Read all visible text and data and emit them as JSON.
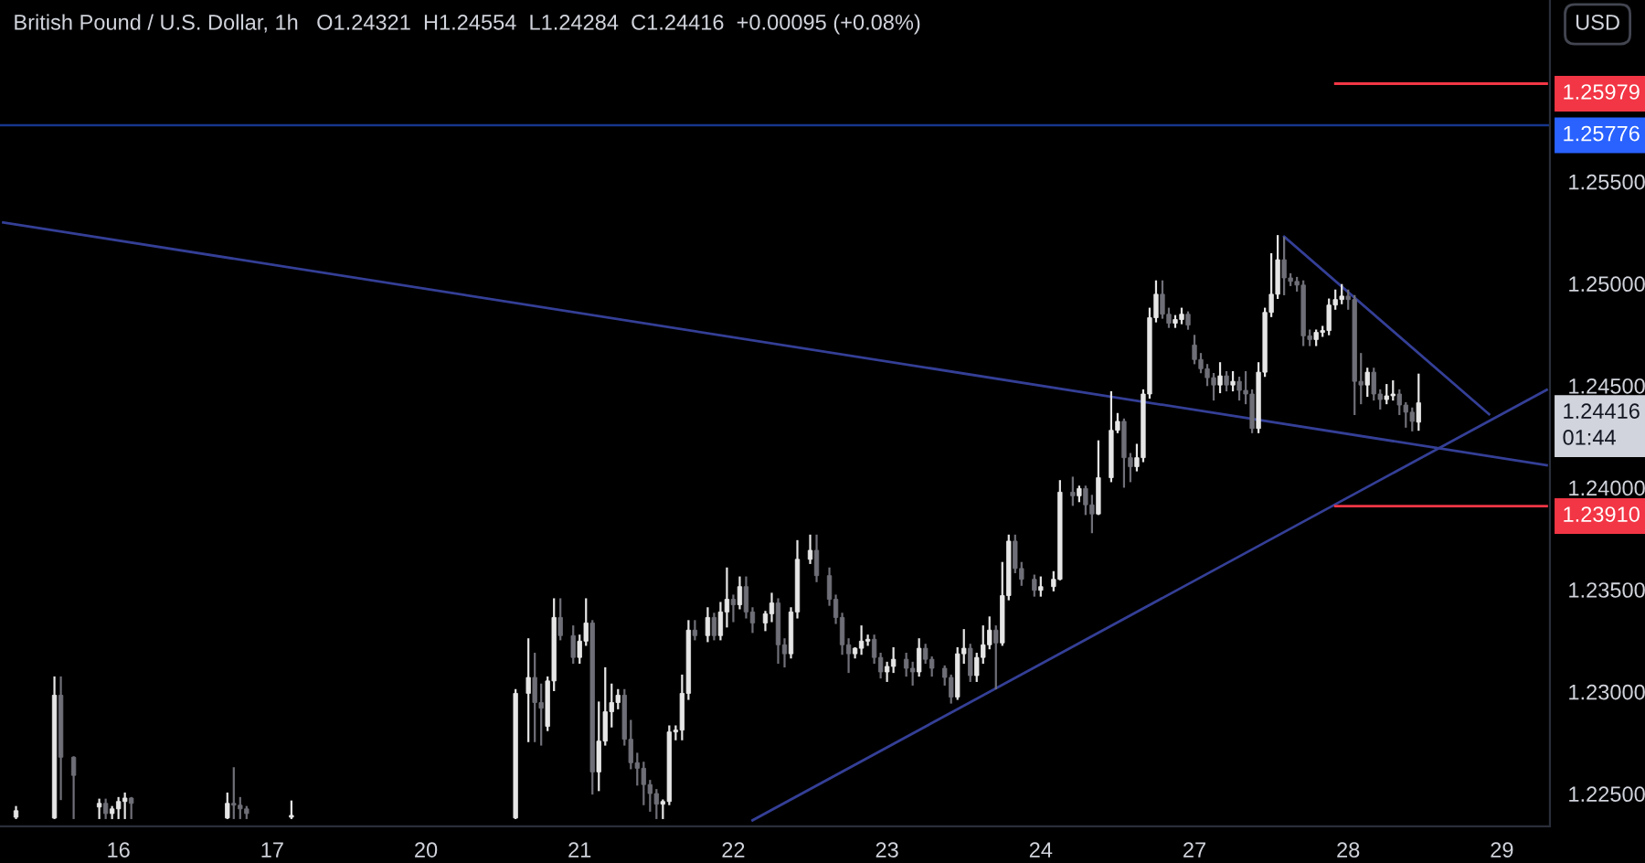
{
  "chart_data": {
    "type": "candlestick",
    "title": "British Pound / U.S. Dollar, 1h",
    "subtitle": "O1.24321  H1.24554  L1.24284  C1.24416  +0.00095 (+0.08%)",
    "categories": [
      null,
      null,
      null,
      null,
      null,
      null,
      null,
      null,
      null,
      null,
      null,
      null,
      null,
      null,
      null,
      null,
      null,
      null,
      "16",
      null,
      null,
      null,
      null,
      null,
      null,
      null,
      null,
      null,
      null,
      null,
      null,
      null,
      null,
      null,
      null,
      null,
      null,
      null,
      null,
      null,
      null,
      null,
      "17",
      null,
      null,
      null,
      null,
      null,
      null,
      null,
      null,
      null,
      null,
      null,
      null,
      null,
      null,
      null,
      null,
      null,
      null,
      null,
      null,
      null,
      null,
      null,
      "20",
      null,
      null,
      null,
      null,
      null,
      null,
      null,
      null,
      null,
      null,
      null,
      null,
      null,
      null,
      null,
      null,
      null,
      null,
      null,
      null,
      null,
      null,
      null,
      "21",
      null,
      null,
      null,
      null,
      null,
      null,
      null,
      null,
      null,
      null,
      null,
      null,
      null,
      null,
      null,
      null,
      null,
      null,
      null,
      null,
      null,
      null,
      null,
      "22",
      null,
      null,
      null,
      null,
      null,
      null,
      null,
      null,
      null,
      null,
      null,
      null,
      null,
      null,
      null,
      null,
      null,
      null,
      null,
      null,
      null,
      null,
      null,
      "23",
      null,
      null,
      null,
      null,
      null,
      null,
      null,
      null,
      null,
      null,
      null,
      null,
      null,
      null,
      null,
      null,
      null,
      null,
      null,
      null,
      null,
      null,
      null,
      "24",
      null,
      null,
      null,
      null,
      null,
      null,
      null,
      null,
      null,
      null,
      null,
      null,
      null,
      null,
      null,
      null,
      null,
      null,
      null,
      null,
      null,
      null,
      null,
      "27",
      null,
      null,
      null,
      null,
      null,
      null,
      null,
      null,
      null,
      null,
      null,
      null,
      null,
      null,
      null,
      null,
      null,
      null,
      null,
      null,
      null,
      null,
      null,
      "28",
      null,
      null,
      null,
      null,
      null,
      null,
      null,
      null,
      null,
      null,
      null,
      null,
      null,
      null,
      null,
      null,
      null,
      null,
      null,
      null,
      null,
      null,
      null,
      "29",
      null,
      null,
      null,
      null,
      null,
      null,
      null
    ],
    "ohlc": [
      null,
      null,
      [
        1.22385,
        1.22435,
        1.22381,
        1.22417
      ],
      null,
      null,
      null,
      null,
      null,
      [
        1.22381,
        1.2307,
        1.22381,
        1.22983
      ],
      [
        1.22983,
        1.2307,
        1.22474,
        1.22679
      ],
      null,
      [
        1.22679,
        1.22679,
        1.22381,
        1.2259
      ],
      null,
      null,
      null,
      [
        1.22435,
        1.22471,
        1.22381,
        1.22453
      ],
      [
        1.22453,
        1.22471,
        1.22381,
        1.22403
      ],
      [
        1.22403,
        1.22435,
        1.22381,
        1.22426
      ],
      [
        1.22426,
        1.22479,
        1.22381,
        1.22462
      ],
      [
        1.22462,
        1.22501,
        1.22381,
        1.22479
      ],
      [
        1.22479,
        1.22479,
        1.22381,
        1.22453
      ],
      null,
      null,
      null,
      null,
      null,
      null,
      null,
      null,
      null,
      null,
      null,
      null,
      null,
      null,
      [
        1.22381,
        1.22501,
        1.22381,
        1.22453
      ],
      [
        1.22453,
        1.22625,
        1.22381,
        1.22444
      ],
      [
        1.22444,
        1.22479,
        1.22381,
        1.22426
      ],
      [
        1.22426,
        1.22435,
        1.22381,
        1.22403
      ],
      null,
      null,
      null,
      null,
      null,
      null,
      [
        1.22385,
        1.22462,
        1.22381,
        1.22394
      ],
      null,
      null,
      null,
      null,
      null,
      null,
      null,
      null,
      null,
      null,
      null,
      null,
      null,
      null,
      null,
      null,
      null,
      null,
      null,
      null,
      null,
      null,
      null,
      null,
      null,
      null,
      null,
      null,
      null,
      null,
      null,
      null,
      null,
      null,
      [
        1.22381,
        1.23008,
        1.22381,
        1.22992
      ],
      null,
      [
        1.22992,
        1.23257,
        1.22758,
        1.2307
      ],
      [
        1.2307,
        1.23186,
        1.22758,
        1.22947
      ],
      [
        1.22947,
        1.23035,
        1.22741,
        1.22919
      ],
      [
        1.2283,
        1.2307,
        1.22812,
        1.23053
      ],
      [
        1.23053,
        1.23453,
        1.23008,
        1.23364
      ],
      [
        1.23364,
        1.23453,
        1.23257,
        1.23275
      ],
      null,
      [
        1.23275,
        1.2332,
        1.23142,
        1.23168
      ],
      [
        1.23168,
        1.23275,
        1.23142,
        1.23248
      ],
      [
        1.23248,
        1.23453,
        1.2323,
        1.23337
      ],
      [
        1.23337,
        1.23346,
        1.22501,
        1.22607
      ],
      [
        1.22607,
        1.22947,
        1.22518,
        1.22758
      ],
      [
        1.22758,
        1.23115,
        1.22741,
        1.22902
      ],
      [
        1.22902,
        1.23035,
        1.2283,
        1.22947
      ],
      [
        1.22947,
        1.23008,
        1.22919,
        1.22983
      ],
      [
        1.22983,
        1.23008,
        1.22741,
        1.22767
      ],
      [
        1.22767,
        1.22857,
        1.22625,
        1.22652
      ],
      [
        1.22652,
        1.22696,
        1.22545,
        1.22625
      ],
      [
        1.22625,
        1.22652,
        1.22449,
        1.22545
      ],
      [
        1.22545,
        1.22563,
        1.22417,
        1.22501
      ],
      [
        1.22501,
        1.22518,
        1.22381,
        1.22449
      ],
      [
        1.22449,
        1.22467,
        1.22381,
        1.22462
      ],
      [
        1.22462,
        1.2283,
        1.22449,
        1.22803
      ],
      [
        1.22803,
        1.2283,
        1.22767,
        1.22812
      ],
      [
        1.22812,
        1.23079,
        1.22767,
        1.22992
      ],
      [
        1.22992,
        1.23346,
        1.22965,
        1.23302
      ],
      [
        1.23302,
        1.23346,
        1.23257,
        1.23275
      ],
      null,
      [
        1.23275,
        1.23409,
        1.23248,
        1.23364
      ],
      [
        1.23364,
        1.23382,
        1.23257,
        1.23275
      ],
      [
        1.23275,
        1.23435,
        1.23257,
        1.23391
      ],
      [
        1.23391,
        1.23604,
        1.2332,
        1.23453
      ],
      [
        1.23453,
        1.23471,
        1.23346,
        1.23426
      ],
      [
        1.23426,
        1.2356,
        1.23409,
        1.23515
      ],
      [
        1.23515,
        1.2356,
        1.23364,
        1.23391
      ],
      [
        1.23391,
        1.23409,
        1.23293,
        1.23337
      ],
      null,
      [
        1.23337,
        1.23391,
        1.23302,
        1.23382
      ],
      [
        1.23382,
        1.2348,
        1.23346,
        1.23435
      ],
      [
        1.23435,
        1.23453,
        1.23142,
        1.2323
      ],
      [
        1.2323,
        1.23257,
        1.23124,
        1.23186
      ],
      [
        1.23186,
        1.23409,
        1.23168,
        1.23391
      ],
      [
        1.23391,
        1.23738,
        1.23364,
        1.23649
      ],
      null,
      [
        1.23649,
        1.23765,
        1.23631,
        1.23693
      ],
      [
        1.23693,
        1.23765,
        1.23542,
        1.23569
      ],
      null,
      [
        1.23569,
        1.23604,
        1.23426,
        1.23453
      ],
      [
        1.23453,
        1.23471,
        1.23337,
        1.23364
      ],
      [
        1.23364,
        1.23382,
        1.23186,
        1.2323
      ],
      [
        1.2323,
        1.23257,
        1.23097,
        1.23186
      ],
      [
        1.23186,
        1.23213,
        1.23168,
        1.23213
      ],
      [
        1.23213,
        1.2332,
        1.23186,
        1.23248
      ],
      [
        1.23248,
        1.23275,
        1.2323,
        1.23257
      ],
      [
        1.23257,
        1.23275,
        1.23142,
        1.23168
      ],
      [
        1.23168,
        1.23186,
        1.2307,
        1.23097
      ],
      [
        1.23097,
        1.23142,
        1.23053,
        1.23124
      ],
      [
        1.23124,
        1.23213,
        1.23097,
        1.23159
      ],
      null,
      [
        1.23159,
        1.23186,
        1.23079,
        1.23115
      ],
      [
        1.23115,
        1.23142,
        1.23035,
        1.23097
      ],
      [
        1.23097,
        1.23257,
        1.23079,
        1.23213
      ],
      [
        1.23213,
        1.2323,
        1.23142,
        1.23159
      ],
      [
        1.23159,
        1.23168,
        1.23079,
        1.23115
      ],
      null,
      [
        1.23115,
        1.23124,
        1.23035,
        1.2307
      ],
      [
        1.2307,
        1.23079,
        1.22947,
        1.22974
      ],
      [
        1.22974,
        1.23213,
        1.22965,
        1.23186
      ],
      [
        1.23186,
        1.23302,
        1.23142,
        1.23213
      ],
      [
        1.23213,
        1.2323,
        1.23053,
        1.23079
      ],
      [
        1.23079,
        1.23186,
        1.23053,
        1.23168
      ],
      [
        1.23168,
        1.2332,
        1.23142,
        1.2323
      ],
      [
        1.2323,
        1.23364,
        1.23213,
        1.23302
      ],
      [
        1.23302,
        1.2332,
        1.23017,
        1.23239
      ],
      [
        1.23239,
        1.23631,
        1.2323,
        1.23471
      ],
      [
        1.23471,
        1.23765,
        1.23453,
        1.23738
      ],
      [
        1.23738,
        1.23765,
        1.23586,
        1.23604
      ],
      [
        1.23604,
        1.23631,
        1.23524,
        1.23551
      ],
      null,
      [
        1.23551,
        1.23569,
        1.23471,
        1.23497
      ],
      [
        1.23497,
        1.2356,
        1.23471,
        1.23515
      ],
      null,
      [
        1.23515,
        1.23586,
        1.23497,
        1.23551
      ],
      [
        1.23551,
        1.24032,
        1.23551,
        1.23978
      ],
      null,
      [
        1.23978,
        1.24049,
        1.23916,
        1.2396
      ],
      [
        1.2396,
        1.24005,
        1.23934,
        1.23996
      ],
      [
        1.23996,
        1.24005,
        1.23871,
        1.23916
      ],
      [
        1.23916,
        1.2396,
        1.23782,
        1.23871
      ],
      [
        1.23871,
        1.24227,
        1.23871,
        1.24049
      ],
      null,
      [
        1.24049,
        1.24468,
        1.24032,
        1.24281
      ],
      [
        1.24281,
        1.24361,
        1.24272,
        1.24325
      ],
      [
        1.24325,
        1.24334,
        1.24005,
        1.24147
      ],
      [
        1.24147,
        1.24165,
        1.24032,
        1.24103
      ],
      [
        1.24103,
        1.2421,
        1.24085,
        1.24147
      ],
      [
        1.24147,
        1.24477,
        1.2413,
        1.24459
      ],
      [
        1.24459,
        1.24877,
        1.24441,
        1.24833
      ],
      [
        1.24833,
        1.25011,
        1.24815,
        1.24948
      ],
      [
        1.24948,
        1.25011,
        1.24833,
        1.2485
      ],
      [
        1.2485,
        1.24877,
        1.24788,
        1.24806
      ],
      [
        1.24806,
        1.24841,
        1.24788,
        1.24824
      ],
      [
        1.24824,
        1.24877,
        1.24806,
        1.2485
      ],
      [
        1.2485,
        1.24859,
        1.24779,
        1.24797
      ],
      [
        1.24699,
        1.24744,
        1.2461,
        1.24628
      ],
      [
        1.24628,
        1.24655,
        1.24566,
        1.24583
      ],
      [
        1.24583,
        1.24601,
        1.24503,
        1.24539
      ],
      [
        1.24539,
        1.24557,
        1.24432,
        1.24503
      ],
      [
        1.24503,
        1.2461,
        1.24468,
        1.24548
      ],
      [
        1.24548,
        1.24566,
        1.24477,
        1.24503
      ],
      [
        1.24503,
        1.24566,
        1.24477,
        1.24521
      ],
      [
        1.24521,
        1.24539,
        1.24432,
        1.24477
      ],
      [
        1.24477,
        1.24566,
        1.24414,
        1.24459
      ],
      [
        1.24459,
        1.24477,
        1.24272,
        1.2429
      ],
      [
        1.2429,
        1.2461,
        1.24272,
        1.24566
      ],
      [
        1.24566,
        1.24877,
        1.24548,
        1.24859
      ],
      [
        1.24859,
        1.25144,
        1.24841,
        1.24948
      ],
      [
        1.24948,
        1.25233,
        1.2493,
        1.25117
      ],
      [
        1.25117,
        1.25224,
        1.24948,
        1.25028
      ],
      [
        1.25028,
        1.25046,
        1.24993,
        1.25011
      ],
      [
        1.25011,
        1.25028,
        1.24966,
        1.24993
      ],
      [
        1.24993,
        1.25011,
        1.24699,
        1.24744
      ],
      [
        1.24744,
        1.2477,
        1.24699,
        1.24726
      ],
      [
        1.24726,
        1.2477,
        1.24699,
        1.24761
      ],
      [
        1.24761,
        1.24788,
        1.24744,
        1.2477
      ],
      [
        1.2477,
        1.24922,
        1.24752,
        1.24895
      ],
      [
        1.24895,
        1.24966,
        1.24877,
        1.24922
      ],
      [
        1.24922,
        1.24993,
        1.24904,
        1.24939
      ],
      [
        1.24939,
        1.24966,
        1.24877,
        1.24922
      ],
      [
        1.24922,
        1.24939,
        1.24361,
        1.24521
      ],
      [
        1.24521,
        1.24655,
        1.24414,
        1.24503
      ],
      [
        1.24503,
        1.24583,
        1.2445,
        1.24566
      ],
      [
        1.24566,
        1.24583,
        1.24432,
        1.24459
      ],
      [
        1.24459,
        1.24477,
        1.24388,
        1.24432
      ],
      [
        1.24432,
        1.24503,
        1.24414,
        1.2445
      ],
      [
        1.2445,
        1.24521,
        1.24432,
        1.24459
      ],
      [
        1.24459,
        1.24477,
        1.24361,
        1.24405
      ],
      [
        1.24405,
        1.24414,
        1.24299,
        1.2437
      ],
      [
        1.2437,
        1.24388,
        1.24281,
        1.24325
      ],
      [
        1.24321,
        1.24554,
        1.24284,
        1.24416
      ],
      null,
      null,
      null,
      null,
      null,
      null,
      null,
      null,
      null,
      null,
      null,
      null,
      null,
      null,
      null,
      null,
      null,
      null,
      null,
      null
    ],
    "series": [
      {
        "type": "line",
        "color": "#343f96",
        "values": [
          1.253,
          null,
          null,
          null,
          null,
          null,
          null,
          null,
          null,
          null,
          null,
          null,
          null,
          null,
          null,
          null,
          null,
          null,
          null,
          null,
          null,
          null,
          null,
          null,
          null,
          null,
          null,
          null,
          null,
          null,
          null,
          null,
          null,
          null,
          null,
          null,
          null,
          null,
          null,
          null,
          null,
          null,
          null,
          null,
          null,
          null,
          null,
          null,
          null,
          null,
          null,
          null,
          null,
          null,
          null,
          null,
          null,
          null,
          null,
          null,
          null,
          null,
          null,
          null,
          null,
          null,
          null,
          null,
          null,
          null,
          null,
          null,
          null,
          null,
          null,
          null,
          null,
          null,
          null,
          null,
          null,
          null,
          null,
          null,
          null,
          null,
          null,
          null,
          null,
          null,
          null,
          null,
          null,
          null,
          null,
          null,
          null,
          null,
          null,
          null,
          null,
          null,
          null,
          null,
          null,
          null,
          null,
          null,
          null,
          null,
          null,
          null,
          null,
          null,
          null,
          null,
          null,
          null,
          null,
          null,
          null,
          null,
          null,
          null,
          null,
          null,
          null,
          null,
          null,
          null,
          null,
          null,
          null,
          null,
          null,
          null,
          null,
          null,
          null,
          null,
          null,
          null,
          null,
          null,
          null,
          null,
          null,
          null,
          null,
          null,
          null,
          null,
          null,
          null,
          null,
          null,
          null,
          null,
          null,
          null,
          null,
          null,
          null,
          null,
          null,
          null,
          null,
          null,
          null,
          null,
          null,
          null,
          null,
          null,
          null,
          null,
          null,
          null,
          null,
          null,
          null,
          null,
          null,
          null,
          null,
          null,
          null,
          null,
          null,
          null,
          null,
          null,
          null,
          null,
          null,
          null,
          null,
          null,
          null,
          null,
          null,
          null,
          null,
          null,
          null,
          null,
          null,
          null,
          null,
          null,
          null,
          null,
          null,
          null,
          null,
          null,
          null,
          null,
          null,
          null,
          null,
          null,
          null,
          null,
          null,
          null,
          null,
          null,
          null,
          null,
          null,
          null,
          null,
          null,
          null,
          null,
          null,
          null,
          null,
          null,
          null,
          1.2411
        ]
      },
      {
        "type": "line",
        "color": "#343f96",
        "values": [
          null,
          null,
          null,
          null,
          null,
          null,
          null,
          null,
          null,
          null,
          null,
          null,
          null,
          null,
          null,
          null,
          null,
          null,
          null,
          null,
          null,
          null,
          null,
          null,
          null,
          null,
          null,
          null,
          null,
          null,
          null,
          null,
          null,
          null,
          null,
          null,
          null,
          null,
          null,
          null,
          null,
          null,
          null,
          null,
          null,
          null,
          null,
          null,
          null,
          null,
          null,
          null,
          null,
          null,
          null,
          null,
          null,
          null,
          null,
          null,
          null,
          null,
          null,
          null,
          null,
          null,
          null,
          null,
          null,
          null,
          null,
          null,
          null,
          null,
          null,
          null,
          null,
          null,
          null,
          null,
          null,
          null,
          null,
          null,
          null,
          null,
          null,
          null,
          null,
          null,
          null,
          null,
          null,
          null,
          null,
          null,
          null,
          null,
          null,
          null,
          null,
          null,
          null,
          null,
          null,
          null,
          null,
          null,
          null,
          null,
          null,
          null,
          null,
          null,
          null,
          null,
          null,
          1.2237,
          null,
          null,
          null,
          null,
          null,
          null,
          null,
          null,
          null,
          null,
          null,
          null,
          null,
          null,
          null,
          null,
          null,
          null,
          null,
          null,
          null,
          null,
          null,
          null,
          null,
          null,
          null,
          null,
          null,
          null,
          null,
          null,
          null,
          null,
          null,
          null,
          null,
          null,
          null,
          null,
          null,
          null,
          null,
          null,
          null,
          null,
          null,
          null,
          null,
          null,
          null,
          null,
          null,
          null,
          null,
          null,
          null,
          null,
          null,
          null,
          null,
          null,
          null,
          null,
          null,
          null,
          null,
          null,
          null,
          null,
          null,
          null,
          null,
          null,
          null,
          null,
          null,
          null,
          null,
          null,
          null,
          null,
          null,
          null,
          null,
          null,
          null,
          null,
          null,
          null,
          null,
          null,
          null,
          null,
          null,
          null,
          null,
          null,
          null,
          null,
          null,
          null,
          null,
          null,
          null,
          null,
          null,
          null,
          null,
          null,
          null,
          null,
          null,
          null,
          null,
          null,
          null,
          null,
          null,
          null,
          null,
          null,
          null,
          1.2448
        ]
      },
      {
        "type": "line",
        "color": "#343f96",
        "values": [
          null,
          null,
          null,
          null,
          null,
          null,
          null,
          null,
          null,
          null,
          null,
          null,
          null,
          null,
          null,
          null,
          null,
          null,
          null,
          null,
          null,
          null,
          null,
          null,
          null,
          null,
          null,
          null,
          null,
          null,
          null,
          null,
          null,
          null,
          null,
          null,
          null,
          null,
          null,
          null,
          null,
          null,
          null,
          null,
          null,
          null,
          null,
          null,
          null,
          null,
          null,
          null,
          null,
          null,
          null,
          null,
          null,
          null,
          null,
          null,
          null,
          null,
          null,
          null,
          null,
          null,
          null,
          null,
          null,
          null,
          null,
          null,
          null,
          null,
          null,
          null,
          null,
          null,
          null,
          null,
          null,
          null,
          null,
          null,
          null,
          null,
          null,
          null,
          null,
          null,
          null,
          null,
          null,
          null,
          null,
          null,
          null,
          null,
          null,
          null,
          null,
          null,
          null,
          null,
          null,
          null,
          null,
          null,
          null,
          null,
          null,
          null,
          null,
          null,
          null,
          null,
          null,
          null,
          null,
          null,
          null,
          null,
          null,
          null,
          null,
          null,
          null,
          null,
          null,
          null,
          null,
          null,
          null,
          null,
          null,
          null,
          null,
          null,
          null,
          null,
          null,
          null,
          null,
          null,
          null,
          null,
          null,
          null,
          null,
          null,
          null,
          null,
          null,
          null,
          null,
          null,
          null,
          null,
          null,
          null,
          null,
          null,
          null,
          null,
          null,
          null,
          null,
          null,
          null,
          null,
          null,
          null,
          null,
          null,
          null,
          null,
          null,
          null,
          null,
          null,
          null,
          null,
          null,
          null,
          null,
          null,
          null,
          null,
          null,
          null,
          null,
          null,
          null,
          null,
          null,
          null,
          null,
          null,
          null,
          null,
          1.2523,
          null,
          null,
          null,
          null,
          null,
          null,
          null,
          null,
          null,
          null,
          null,
          null,
          null,
          null,
          null,
          null,
          null,
          null,
          null,
          null,
          null,
          null,
          null,
          null,
          null,
          null,
          null,
          null,
          null,
          null,
          null,
          1.2436,
          null,
          null,
          null,
          null,
          null,
          null,
          null,
          null,
          null
        ]
      },
      {
        "type": "line",
        "name": "1.25979",
        "color": "#f23645",
        "values": [
          null,
          null,
          null,
          null,
          null,
          null,
          null,
          null,
          null,
          null,
          null,
          null,
          null,
          null,
          null,
          null,
          null,
          null,
          null,
          null,
          null,
          null,
          null,
          null,
          null,
          null,
          null,
          null,
          null,
          null,
          null,
          null,
          null,
          null,
          null,
          null,
          null,
          null,
          null,
          null,
          null,
          null,
          null,
          null,
          null,
          null,
          null,
          null,
          null,
          null,
          null,
          null,
          null,
          null,
          null,
          null,
          null,
          null,
          null,
          null,
          null,
          null,
          null,
          null,
          null,
          null,
          null,
          null,
          null,
          null,
          null,
          null,
          null,
          null,
          null,
          null,
          null,
          null,
          null,
          null,
          null,
          null,
          null,
          null,
          null,
          null,
          null,
          null,
          null,
          null,
          null,
          null,
          null,
          null,
          null,
          null,
          null,
          null,
          null,
          null,
          null,
          null,
          null,
          null,
          null,
          null,
          null,
          null,
          null,
          null,
          null,
          null,
          null,
          null,
          null,
          null,
          null,
          null,
          null,
          null,
          null,
          null,
          null,
          null,
          null,
          null,
          null,
          null,
          null,
          null,
          null,
          null,
          null,
          null,
          null,
          null,
          null,
          null,
          null,
          null,
          null,
          null,
          null,
          null,
          null,
          null,
          null,
          null,
          null,
          null,
          null,
          null,
          null,
          null,
          null,
          null,
          null,
          null,
          null,
          null,
          null,
          null,
          null,
          null,
          null,
          null,
          null,
          null,
          null,
          null,
          null,
          null,
          null,
          null,
          null,
          null,
          null,
          null,
          null,
          null,
          null,
          null,
          null,
          null,
          null,
          null,
          null,
          null,
          null,
          null,
          null,
          null,
          null,
          null,
          null,
          null,
          null,
          null,
          null,
          null,
          null,
          null,
          null,
          null,
          null,
          null,
          null,
          null,
          1.2598,
          null,
          null,
          null,
          null,
          null,
          null,
          null,
          null,
          null,
          null,
          null,
          null,
          null,
          null,
          null,
          null,
          null,
          null,
          null,
          null,
          null,
          null,
          null,
          null,
          null,
          null,
          null,
          null,
          null,
          null,
          null,
          null,
          1.2598
        ]
      },
      {
        "type": "line",
        "name": "1.23910",
        "color": "#f23645",
        "values": [
          null,
          null,
          null,
          null,
          null,
          null,
          null,
          null,
          null,
          null,
          null,
          null,
          null,
          null,
          null,
          null,
          null,
          null,
          null,
          null,
          null,
          null,
          null,
          null,
          null,
          null,
          null,
          null,
          null,
          null,
          null,
          null,
          null,
          null,
          null,
          null,
          null,
          null,
          null,
          null,
          null,
          null,
          null,
          null,
          null,
          null,
          null,
          null,
          null,
          null,
          null,
          null,
          null,
          null,
          null,
          null,
          null,
          null,
          null,
          null,
          null,
          null,
          null,
          null,
          null,
          null,
          null,
          null,
          null,
          null,
          null,
          null,
          null,
          null,
          null,
          null,
          null,
          null,
          null,
          null,
          null,
          null,
          null,
          null,
          null,
          null,
          null,
          null,
          null,
          null,
          null,
          null,
          null,
          null,
          null,
          null,
          null,
          null,
          null,
          null,
          null,
          null,
          null,
          null,
          null,
          null,
          null,
          null,
          null,
          null,
          null,
          null,
          null,
          null,
          null,
          null,
          null,
          null,
          null,
          null,
          null,
          null,
          null,
          null,
          null,
          null,
          null,
          null,
          null,
          null,
          null,
          null,
          null,
          null,
          null,
          null,
          null,
          null,
          null,
          null,
          null,
          null,
          null,
          null,
          null,
          null,
          null,
          null,
          null,
          null,
          null,
          null,
          null,
          null,
          null,
          null,
          null,
          null,
          null,
          null,
          null,
          null,
          null,
          null,
          null,
          null,
          null,
          null,
          null,
          null,
          null,
          null,
          null,
          null,
          null,
          null,
          null,
          null,
          null,
          null,
          null,
          null,
          null,
          null,
          null,
          null,
          null,
          null,
          null,
          null,
          null,
          null,
          null,
          null,
          null,
          null,
          null,
          null,
          null,
          null,
          null,
          null,
          null,
          null,
          null,
          null,
          null,
          null,
          1.2391,
          null,
          null,
          null,
          null,
          null,
          null,
          null,
          null,
          null,
          null,
          null,
          null,
          null,
          null,
          null,
          null,
          null,
          null,
          null,
          null,
          null,
          null,
          null,
          null,
          null,
          null,
          null,
          null,
          null,
          null,
          null,
          null,
          1.2391
        ]
      }
    ],
    "ref_lines": [
      {
        "axis": "y",
        "value": 1.25776,
        "label": "1.25776",
        "color": "#2962ff"
      }
    ],
    "annotations": [
      "USD",
      "1.24416\n01:44"
    ],
    "ylim": [
      1.2234,
      1.2639
    ],
    "yticks": [
      {
        "value": 1.225,
        "label": "1.22500"
      },
      {
        "value": 1.23,
        "label": "1.23000"
      },
      {
        "value": 1.235,
        "label": "1.23500"
      },
      {
        "value": 1.24,
        "label": "1.24000"
      },
      {
        "value": 1.245,
        "label": "1.24500"
      },
      {
        "value": 1.25,
        "label": "1.25000"
      },
      {
        "value": 1.255,
        "label": "1.25500"
      }
    ],
    "grid": false
  }
}
